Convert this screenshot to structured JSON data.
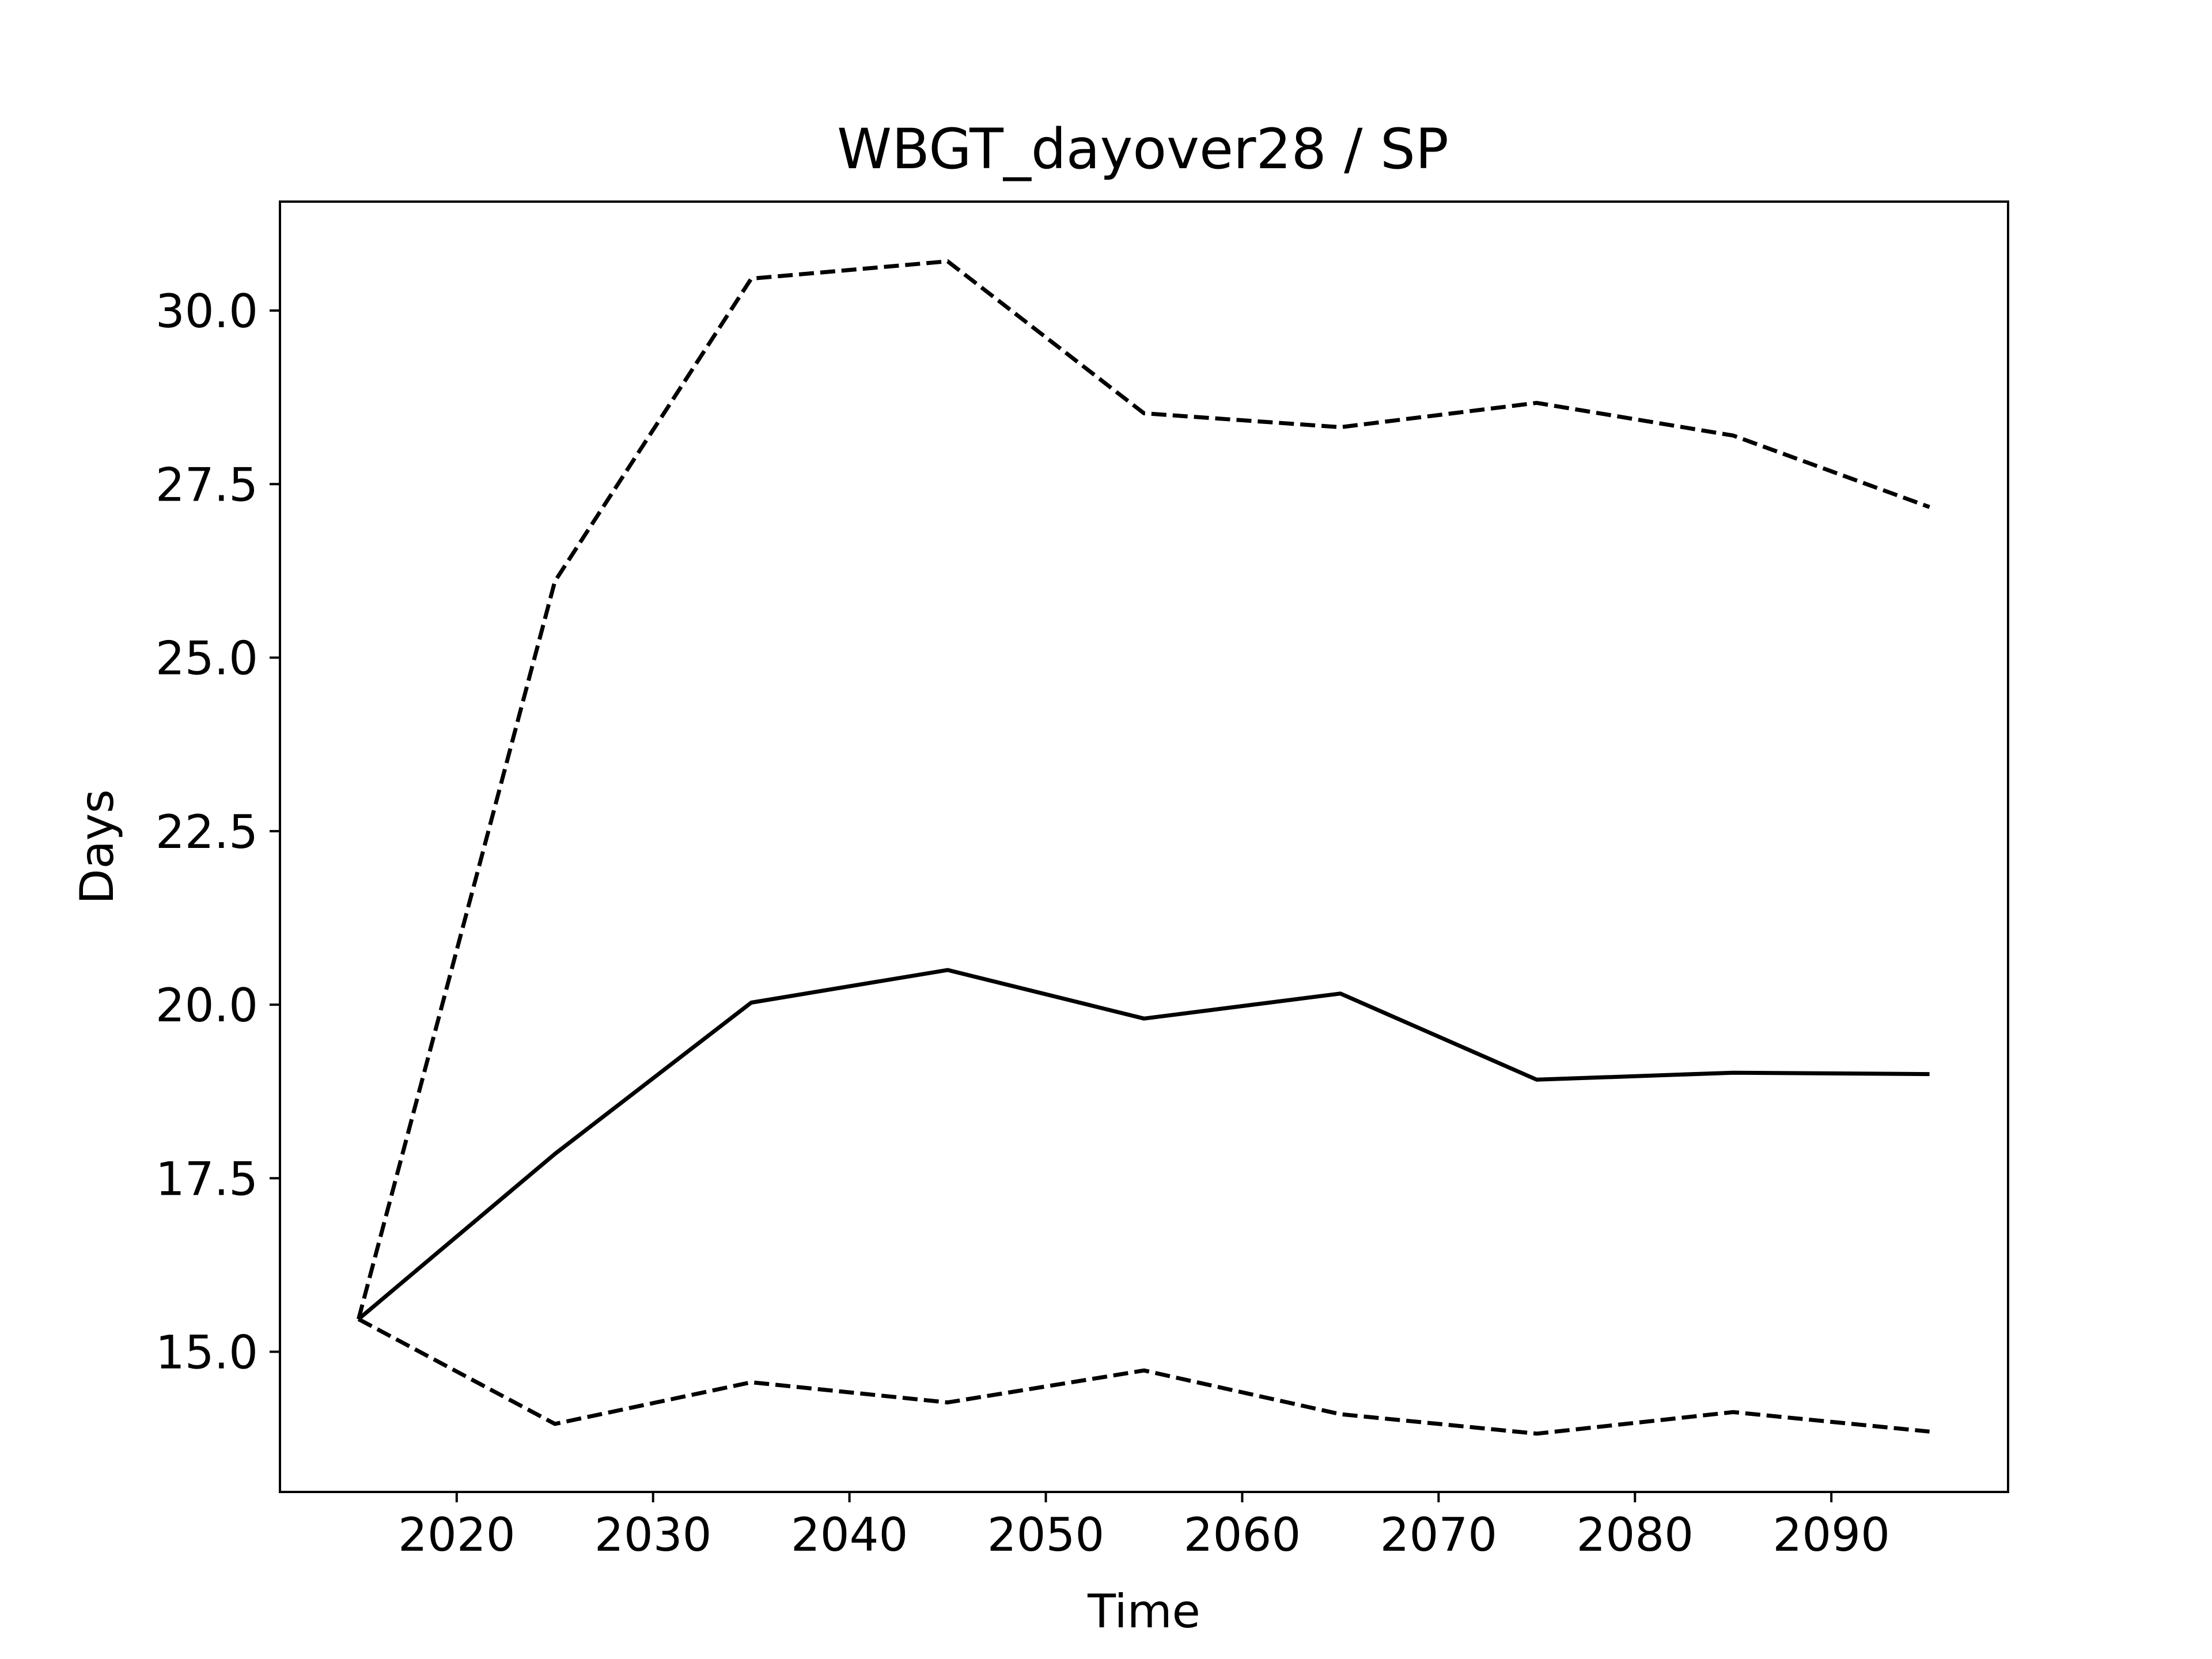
{
  "chart_data": {
    "type": "line",
    "title": "WBGT_dayover28 / SP",
    "xlabel": "Time",
    "ylabel": "Days",
    "xlim": [
      2011,
      2099
    ],
    "ylim": [
      12.98,
      31.57
    ],
    "xticks": [
      2020,
      2030,
      2040,
      2050,
      2060,
      2070,
      2080,
      2090
    ],
    "yticks": [
      15.0,
      17.5,
      20.0,
      22.5,
      25.0,
      27.5,
      30.0
    ],
    "grid": false,
    "legend": "none",
    "x": [
      2015,
      2025,
      2035,
      2045,
      2055,
      2065,
      2075,
      2085,
      2095
    ],
    "series": [
      {
        "style": "solid",
        "color": "#000000",
        "values": [
          15.47,
          17.85,
          20.03,
          20.5,
          19.8,
          20.16,
          18.92,
          19.02,
          19.0
        ]
      },
      {
        "style": "dashed",
        "color": "#000000",
        "values": [
          15.47,
          26.1,
          30.46,
          30.71,
          28.52,
          28.32,
          28.67,
          28.2,
          27.17
        ]
      },
      {
        "style": "dashed",
        "color": "#000000",
        "values": [
          15.47,
          13.96,
          14.56,
          14.27,
          14.73,
          14.1,
          13.82,
          14.13,
          13.85
        ]
      }
    ]
  }
}
